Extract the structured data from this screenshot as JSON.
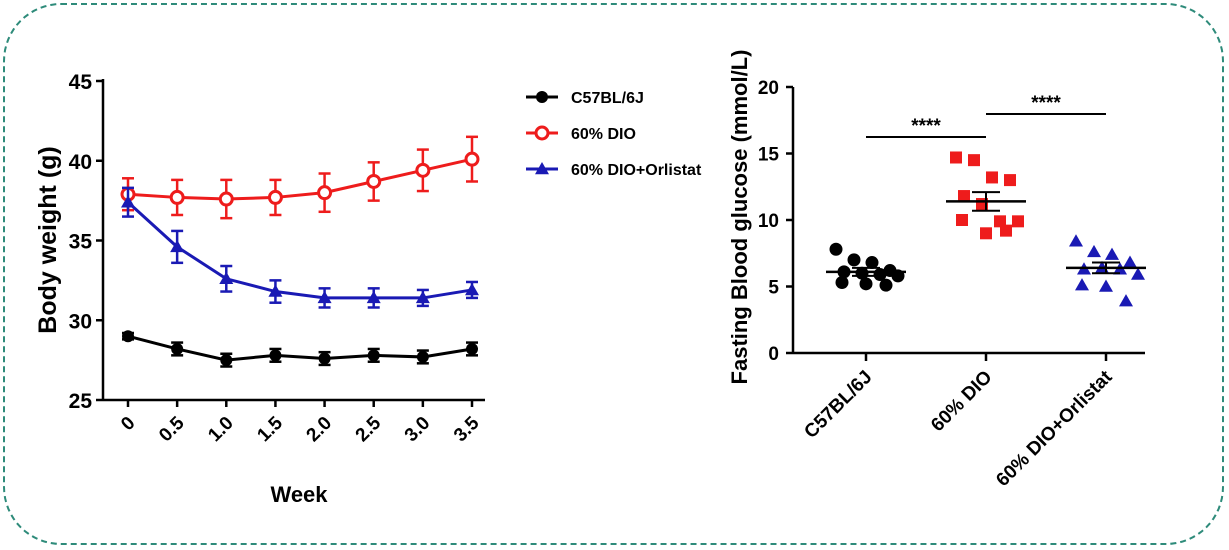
{
  "chart_data": [
    {
      "type": "line",
      "xlabel": "Week",
      "ylabel": "Body weight (g)",
      "ylim": [
        25,
        45
      ],
      "yticks": [
        "25",
        "30",
        "35",
        "40",
        "45"
      ],
      "x": [
        0,
        0.5,
        1.0,
        1.5,
        2.0,
        2.5,
        3.0,
        3.5
      ],
      "xtick_labels": [
        "0",
        "0.5",
        "1.0",
        "1.5",
        "2.0",
        "2.5",
        "3.0",
        "3.5"
      ],
      "legend_position": "right",
      "series": [
        {
          "name": "C57BL/6J",
          "color": "#000000",
          "marker": "circle-filled",
          "values": [
            29.0,
            28.2,
            27.5,
            27.8,
            27.6,
            27.8,
            27.7,
            28.2
          ],
          "errors": [
            0.2,
            0.4,
            0.4,
            0.4,
            0.4,
            0.4,
            0.4,
            0.4
          ]
        },
        {
          "name": "60% DIO",
          "color": "#ee1c1c",
          "marker": "circle-open",
          "values": [
            37.9,
            37.7,
            37.6,
            37.7,
            38.0,
            38.7,
            39.4,
            40.1
          ],
          "errors": [
            1.0,
            1.1,
            1.2,
            1.1,
            1.2,
            1.2,
            1.3,
            1.4
          ]
        },
        {
          "name": "60% DIO+Orlistat",
          "color": "#1a1ab4",
          "marker": "triangle-filled",
          "values": [
            37.4,
            34.6,
            32.6,
            31.8,
            31.4,
            31.4,
            31.4,
            31.9
          ],
          "errors": [
            0.9,
            1.0,
            0.8,
            0.7,
            0.6,
            0.6,
            0.5,
            0.5
          ]
        }
      ]
    },
    {
      "type": "scatter",
      "title": "",
      "xlabel": "",
      "ylabel": "Fasting Blood glucose (mmol/L)",
      "ylim": [
        0,
        20
      ],
      "yticks": [
        "0",
        "5",
        "10",
        "15",
        "20"
      ],
      "categories": [
        "C57BL/6J",
        "60% DIO",
        "60% DIO+Orlistat"
      ],
      "significance": [
        {
          "groups": [
            "C57BL/6J",
            "60% DIO"
          ],
          "label": "****"
        },
        {
          "groups": [
            "60% DIO",
            "60% DIO+Orlistat"
          ],
          "label": "****"
        }
      ],
      "series": [
        {
          "name": "C57BL/6J",
          "color": "#000000",
          "marker": "circle",
          "points": [
            7.8,
            7.0,
            6.8,
            6.2,
            6.1,
            6.0,
            5.9,
            5.8,
            5.3,
            5.2,
            5.1
          ],
          "mean": 6.1,
          "sem": 0.3
        },
        {
          "name": "60% DIO",
          "color": "#ee1c1c",
          "marker": "square",
          "points": [
            14.7,
            14.5,
            13.2,
            13.0,
            11.8,
            11.2,
            9.9,
            9.9,
            10.0,
            9.0,
            9.2
          ],
          "mean": 11.4,
          "sem": 0.7
        },
        {
          "name": "60% DIO+Orlistat",
          "color": "#1a1ab4",
          "marker": "triangle",
          "points": [
            8.4,
            7.6,
            7.4,
            6.8,
            6.3,
            6.4,
            6.3,
            5.9,
            5.1,
            5.0,
            3.9
          ],
          "mean": 6.4,
          "sem": 0.4
        }
      ]
    }
  ]
}
